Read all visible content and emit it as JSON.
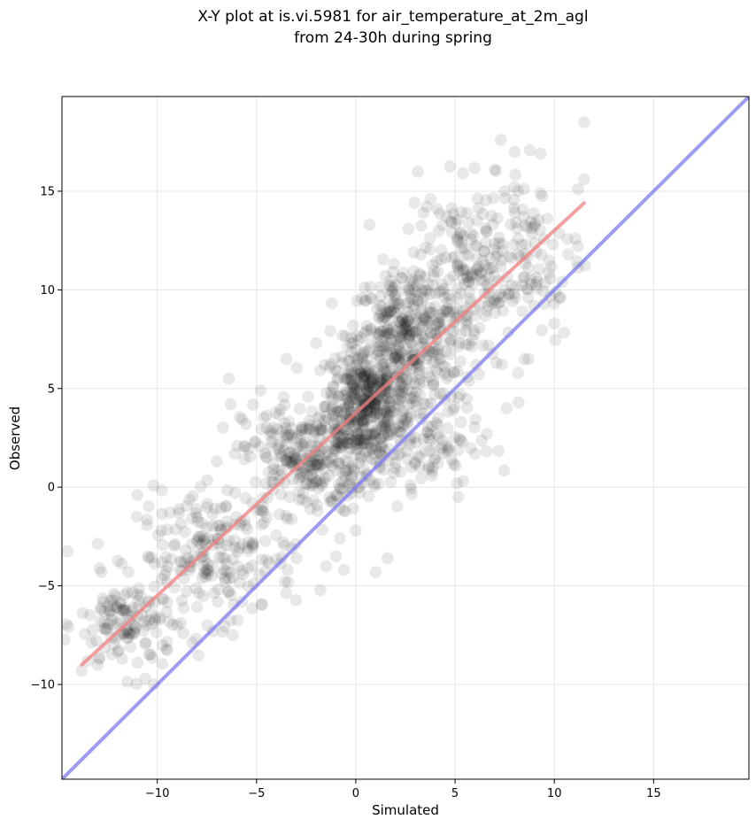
{
  "chart_data": {
    "type": "scatter",
    "title_line1": "X-Y plot at is.vi.5981 for air_temperature_at_2m_agl",
    "title_line2": "from 24-30h during spring",
    "xlabel": "Simulated",
    "ylabel": "Observed",
    "xlim": [
      -14.8,
      19.8
    ],
    "ylim": [
      -14.8,
      19.8
    ],
    "xticks": [
      -10,
      -5,
      0,
      5,
      10,
      15
    ],
    "yticks": [
      -10,
      -5,
      0,
      5,
      10,
      15
    ],
    "xtick_labels": [
      "−10",
      "−5",
      "0",
      "5",
      "10",
      "15"
    ],
    "ytick_labels": [
      "−10",
      "−5",
      "0",
      "5",
      "10",
      "15"
    ],
    "grid": true,
    "legend": "none",
    "colors": {
      "points": "#000000",
      "fit_line": "#f08080",
      "identity_line": "#7b7bef",
      "grid": "#e6e6e6"
    },
    "identity_line": {
      "from": [
        -14.8,
        -14.8
      ],
      "to": [
        19.8,
        19.8
      ]
    },
    "fit_line": {
      "from": [
        -13.8,
        -9.0
      ],
      "to": [
        11.5,
        14.4
      ]
    },
    "cloud": {
      "count": 1750,
      "clusters": [
        {
          "x": 0.5,
          "y": 4.2,
          "sx": 1.0,
          "sy": 1.6,
          "w": 0.22
        },
        {
          "x": 2.5,
          "y": 7.5,
          "sx": 1.3,
          "sy": 1.8,
          "w": 0.18
        },
        {
          "x": -2.5,
          "y": 1.5,
          "sx": 1.6,
          "sy": 1.4,
          "w": 0.16
        },
        {
          "x": -7.0,
          "y": -3.5,
          "sx": 2.0,
          "sy": 1.6,
          "w": 0.12
        },
        {
          "x": -11.5,
          "y": -7.0,
          "sx": 1.2,
          "sy": 1.2,
          "w": 0.07
        },
        {
          "x": 5.5,
          "y": 10.5,
          "sx": 1.6,
          "sy": 2.2,
          "w": 0.11
        },
        {
          "x": 3.0,
          "y": 2.5,
          "sx": 1.6,
          "sy": 1.6,
          "w": 0.08
        },
        {
          "x": 8.0,
          "y": 12.0,
          "sx": 1.8,
          "sy": 2.4,
          "w": 0.06
        }
      ],
      "outliers": [
        [
          11.5,
          18.5
        ],
        [
          7.3,
          17.6
        ],
        [
          11.5,
          15.6
        ],
        [
          11.2,
          15.1
        ],
        [
          9.3,
          16.9
        ],
        [
          8.0,
          17.0
        ],
        [
          7.5,
          15.0
        ],
        [
          9.3,
          14.9
        ],
        [
          -11.0,
          -0.4
        ],
        [
          -10.6,
          -9.7
        ],
        [
          -11.0,
          -8.9
        ],
        [
          1.6,
          -3.6
        ],
        [
          1.0,
          -4.3
        ],
        [
          -0.6,
          -4.2
        ],
        [
          -1.0,
          -3.5
        ],
        [
          -0.8,
          -2.6
        ],
        [
          0.0,
          -2.2
        ],
        [
          5.1,
          0.2
        ],
        [
          10.0,
          8.3
        ],
        [
          10.0,
          9.3
        ],
        [
          10.4,
          10.4
        ],
        [
          10.7,
          11.8
        ],
        [
          8.7,
          6.5
        ],
        [
          6.0,
          1.7
        ],
        [
          6.6,
          2.7
        ],
        [
          7.6,
          4.0
        ],
        [
          8.2,
          4.3
        ],
        [
          -6.2,
          -7.5
        ],
        [
          -6.4,
          5.5
        ],
        [
          -7.0,
          1.3
        ],
        [
          -9.0,
          -7.0
        ],
        [
          -13.8,
          -9.3
        ],
        [
          -13.5,
          -8.8
        ],
        [
          -13.0,
          -9.0
        ],
        [
          -8.9,
          -1.3
        ],
        [
          -9.8,
          -2.2
        ],
        [
          -6.3,
          4.2
        ],
        [
          -4.8,
          4.9
        ],
        [
          -3.5,
          6.5
        ],
        [
          -2.0,
          7.3
        ],
        [
          4.1,
          14.1
        ],
        [
          3.4,
          13.9
        ],
        [
          5.4,
          15.9
        ],
        [
          7.0,
          16.1
        ]
      ]
    }
  }
}
